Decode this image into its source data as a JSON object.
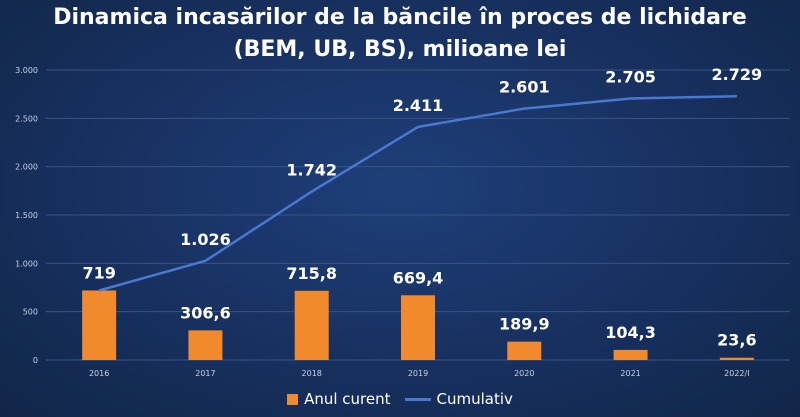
{
  "title_line1": "Dinamica incasărilor de la băncile în proces de lichidare",
  "title_line2": "(BEM, UB, BS), milioane lei",
  "colors": {
    "bar": "#f08a2c",
    "line": "#4a78d0",
    "grid": "#3a5384",
    "text": "#ffffff",
    "axis_text": "#c8d2e6"
  },
  "chart_data": {
    "type": "bar",
    "title": "Dinamica incasărilor de la băncile în proces de lichidare (BEM, UB, BS), milioane lei",
    "categories": [
      "2016",
      "2017",
      "2018",
      "2019",
      "2020",
      "2021",
      "2022/I"
    ],
    "ylim": [
      0,
      3000
    ],
    "yticks": [
      0,
      500,
      1000,
      1500,
      2000,
      2500,
      3000
    ],
    "ytick_labels": [
      "0",
      "500",
      "1.000",
      "1.500",
      "2.000",
      "2.500",
      "3.000"
    ],
    "grid": true,
    "legend_position": "bottom",
    "series": [
      {
        "name": "Anul curent",
        "type": "bar",
        "values": [
          719,
          306.6,
          715.8,
          669.4,
          189.9,
          104.3,
          23.6
        ],
        "labels": [
          "719",
          "306,6",
          "715,8",
          "669,4",
          "189,9",
          "104,3",
          "23,6"
        ]
      },
      {
        "name": "Cumulativ",
        "type": "line",
        "values": [
          719,
          1026,
          1742,
          2411,
          2601,
          2705,
          2729
        ],
        "labels": [
          "",
          "1.026",
          "1.742",
          "2.411",
          "2.601",
          "2.705",
          "2.729"
        ]
      }
    ]
  }
}
